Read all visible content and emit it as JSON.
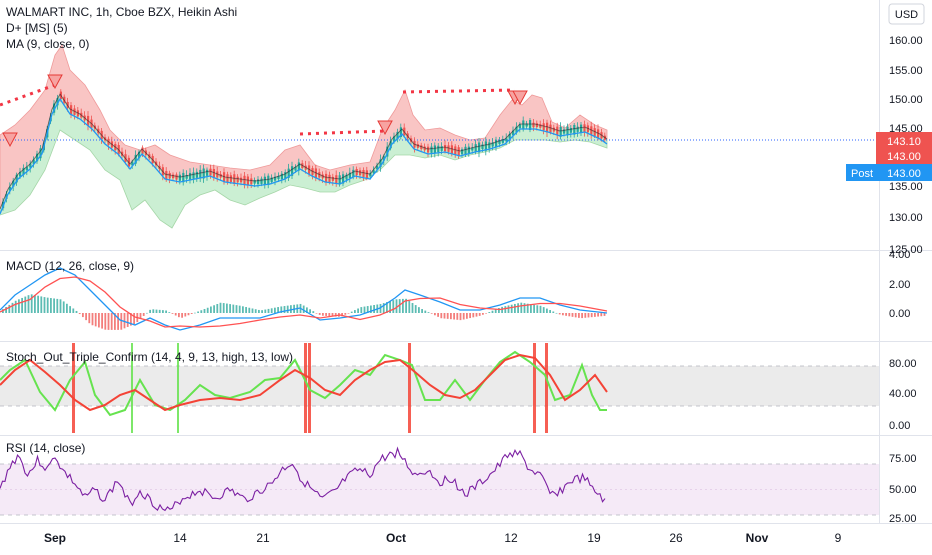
{
  "header": {
    "title": "WALMART INC, 1h, Cboe BZX, Heikin Ashi",
    "indicator_1": "D+ [MS] (5)",
    "indicator_2": "MA (9, close, 0)"
  },
  "currency_button": "USD",
  "price_axis": {
    "ticks": [
      "160.00",
      "155.00",
      "150.00",
      "145.00",
      "140.00",
      "135.00",
      "130.00",
      "125.00"
    ],
    "badge_upper": "143.10",
    "badge_lower": "143.00",
    "post_label": "Post",
    "post_value": "143.00"
  },
  "macd": {
    "label": "MACD (12, 26, close, 9)",
    "ticks": [
      "4.00",
      "2.00",
      "0.00"
    ]
  },
  "stoch": {
    "label": "Stoch_Out_Triple_Confirm (14, 4, 9, 13, high, 13, low)",
    "ticks": [
      "80.00",
      "40.00",
      "0.00"
    ]
  },
  "rsi": {
    "label": "RSI (14, close)",
    "ticks": [
      "75.00",
      "50.00",
      "25.00"
    ]
  },
  "time_axis": {
    "labels": [
      "Sep",
      "14",
      "21",
      "Oct",
      "12",
      "19",
      "26",
      "Nov",
      "9"
    ]
  },
  "colors": {
    "up": "#26a69a",
    "down": "#ef5350",
    "price_line": "#2962ff",
    "macd_line": "#2196f3",
    "signal_line": "#ff5252",
    "rsi_line": "#7b1fa2",
    "stoch_green": "#66e34f",
    "stoch_red": "#f44336"
  }
}
